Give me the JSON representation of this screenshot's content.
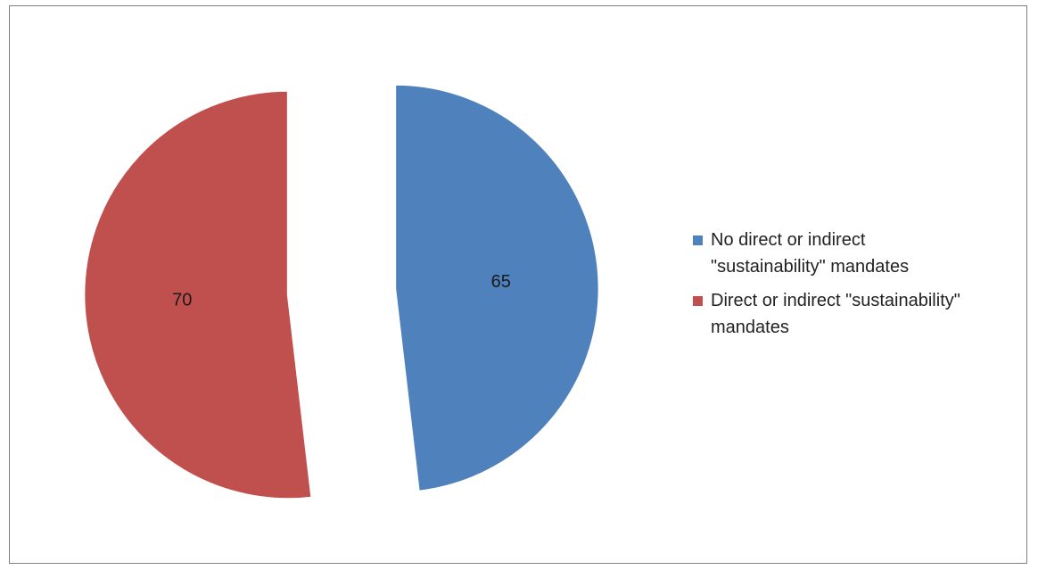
{
  "chart_data": {
    "type": "pie",
    "title": "",
    "exploded": true,
    "legend_position": "right",
    "slices": [
      {
        "label": "No direct or indirect \"sustainability\" mandates",
        "value": 65,
        "value_label": "65",
        "color": "#4F81BD"
      },
      {
        "label": "Direct or indirect \"sustainability\" mandates",
        "value": 70,
        "value_label": "70",
        "color": "#C0504D"
      }
    ]
  }
}
